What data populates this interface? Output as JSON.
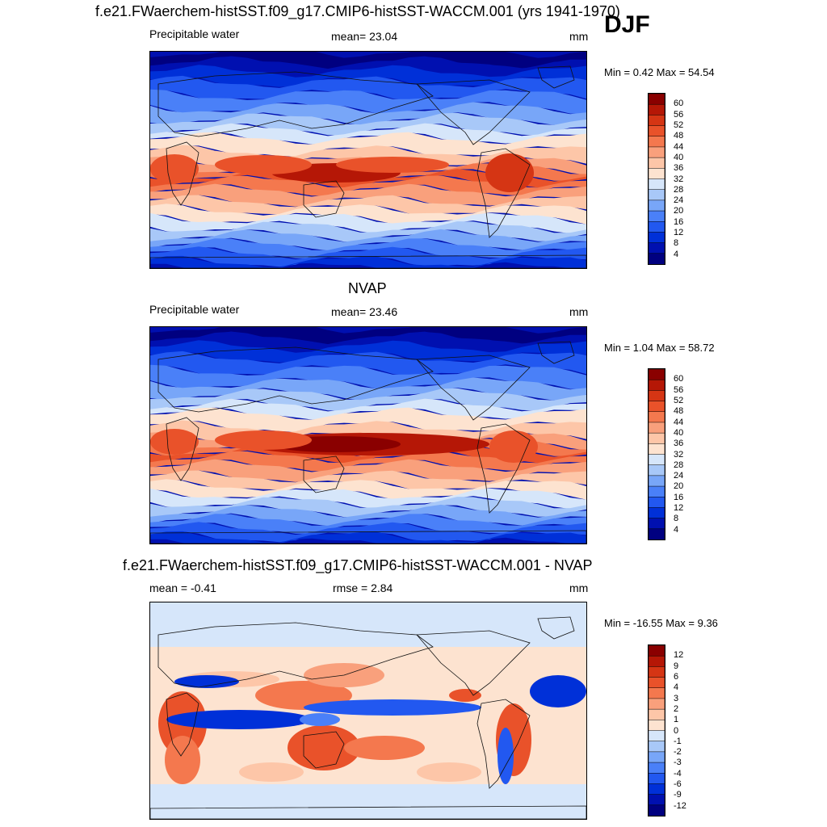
{
  "season": "DJF",
  "colors": {
    "seq": [
      "#000080",
      "#0010b0",
      "#0030d8",
      "#2258f0",
      "#4a80f8",
      "#78a6f8",
      "#a8c8f8",
      "#d6e6fa",
      "#fde3d0",
      "#fdc6a8",
      "#f9a07c",
      "#f4784e",
      "#e9522a",
      "#d53514",
      "#b51706",
      "#8a0000"
    ],
    "diff": [
      "#000080",
      "#0010b0",
      "#0030d8",
      "#2258f0",
      "#4a80f8",
      "#78a6f8",
      "#a8c8f8",
      "#d6e6fa",
      "#fde3d0",
      "#fdc6a8",
      "#f9a07c",
      "#f4784e",
      "#e9522a",
      "#d53514",
      "#b51706",
      "#8a0000"
    ]
  },
  "panels": [
    {
      "title": "f.e21.FWaerchem-histSST.f09_g17.CMIP6-histSST-WACCM.001 (yrs 1941-1970)",
      "left_label": "Precipitable water",
      "center_label": "mean=  23.04",
      "units": "mm",
      "minmax": "Min =   0.42 Max =  54.54",
      "ticks": [
        "60",
        "56",
        "52",
        "48",
        "44",
        "40",
        "36",
        "32",
        "28",
        "24",
        "20",
        "16",
        "12",
        "8",
        "4"
      ]
    },
    {
      "title": "NVAP",
      "left_label": "Precipitable water",
      "center_label": "mean=  23.46",
      "units": "mm",
      "minmax": "Min =   1.04 Max =  58.72",
      "ticks": [
        "60",
        "56",
        "52",
        "48",
        "44",
        "40",
        "36",
        "32",
        "28",
        "24",
        "20",
        "16",
        "12",
        "8",
        "4"
      ]
    },
    {
      "title": "f.e21.FWaerchem-histSST.f09_g17.CMIP6-histSST-WACCM.001 - NVAP",
      "left_label": "mean =  -0.41",
      "center_label": "rmse =   2.84",
      "units": "mm",
      "minmax": "Min = -16.55 Max =   9.36",
      "ticks": [
        "12",
        "9",
        "6",
        "4",
        "3",
        "2",
        "1",
        "0",
        "-1",
        "-2",
        "-3",
        "-4",
        "-6",
        "-9",
        "-12"
      ]
    }
  ],
  "chart_data": [
    {
      "type": "heatmap",
      "title": "f.e21.FWaerchem-histSST.f09_g17.CMIP6-histSST-WACCM.001 (yrs 1941-1970)",
      "variable": "Precipitable water",
      "units": "mm",
      "mean": 23.04,
      "min": 0.42,
      "max": 54.54,
      "contour_levels": [
        4,
        8,
        12,
        16,
        20,
        24,
        28,
        32,
        36,
        40,
        44,
        48,
        52,
        56,
        60
      ]
    },
    {
      "type": "heatmap",
      "title": "NVAP",
      "variable": "Precipitable water",
      "units": "mm",
      "mean": 23.46,
      "min": 1.04,
      "max": 58.72,
      "contour_levels": [
        4,
        8,
        12,
        16,
        20,
        24,
        28,
        32,
        36,
        40,
        44,
        48,
        52,
        56,
        60
      ]
    },
    {
      "type": "heatmap",
      "title": "f.e21.FWaerchem-histSST.f09_g17.CMIP6-histSST-WACCM.001 - NVAP",
      "units": "mm",
      "mean": -0.41,
      "rmse": 2.84,
      "min": -16.55,
      "max": 9.36,
      "contour_levels": [
        -12,
        -9,
        -6,
        -4,
        -3,
        -2,
        -1,
        0,
        1,
        2,
        3,
        4,
        6,
        9,
        12
      ]
    }
  ]
}
